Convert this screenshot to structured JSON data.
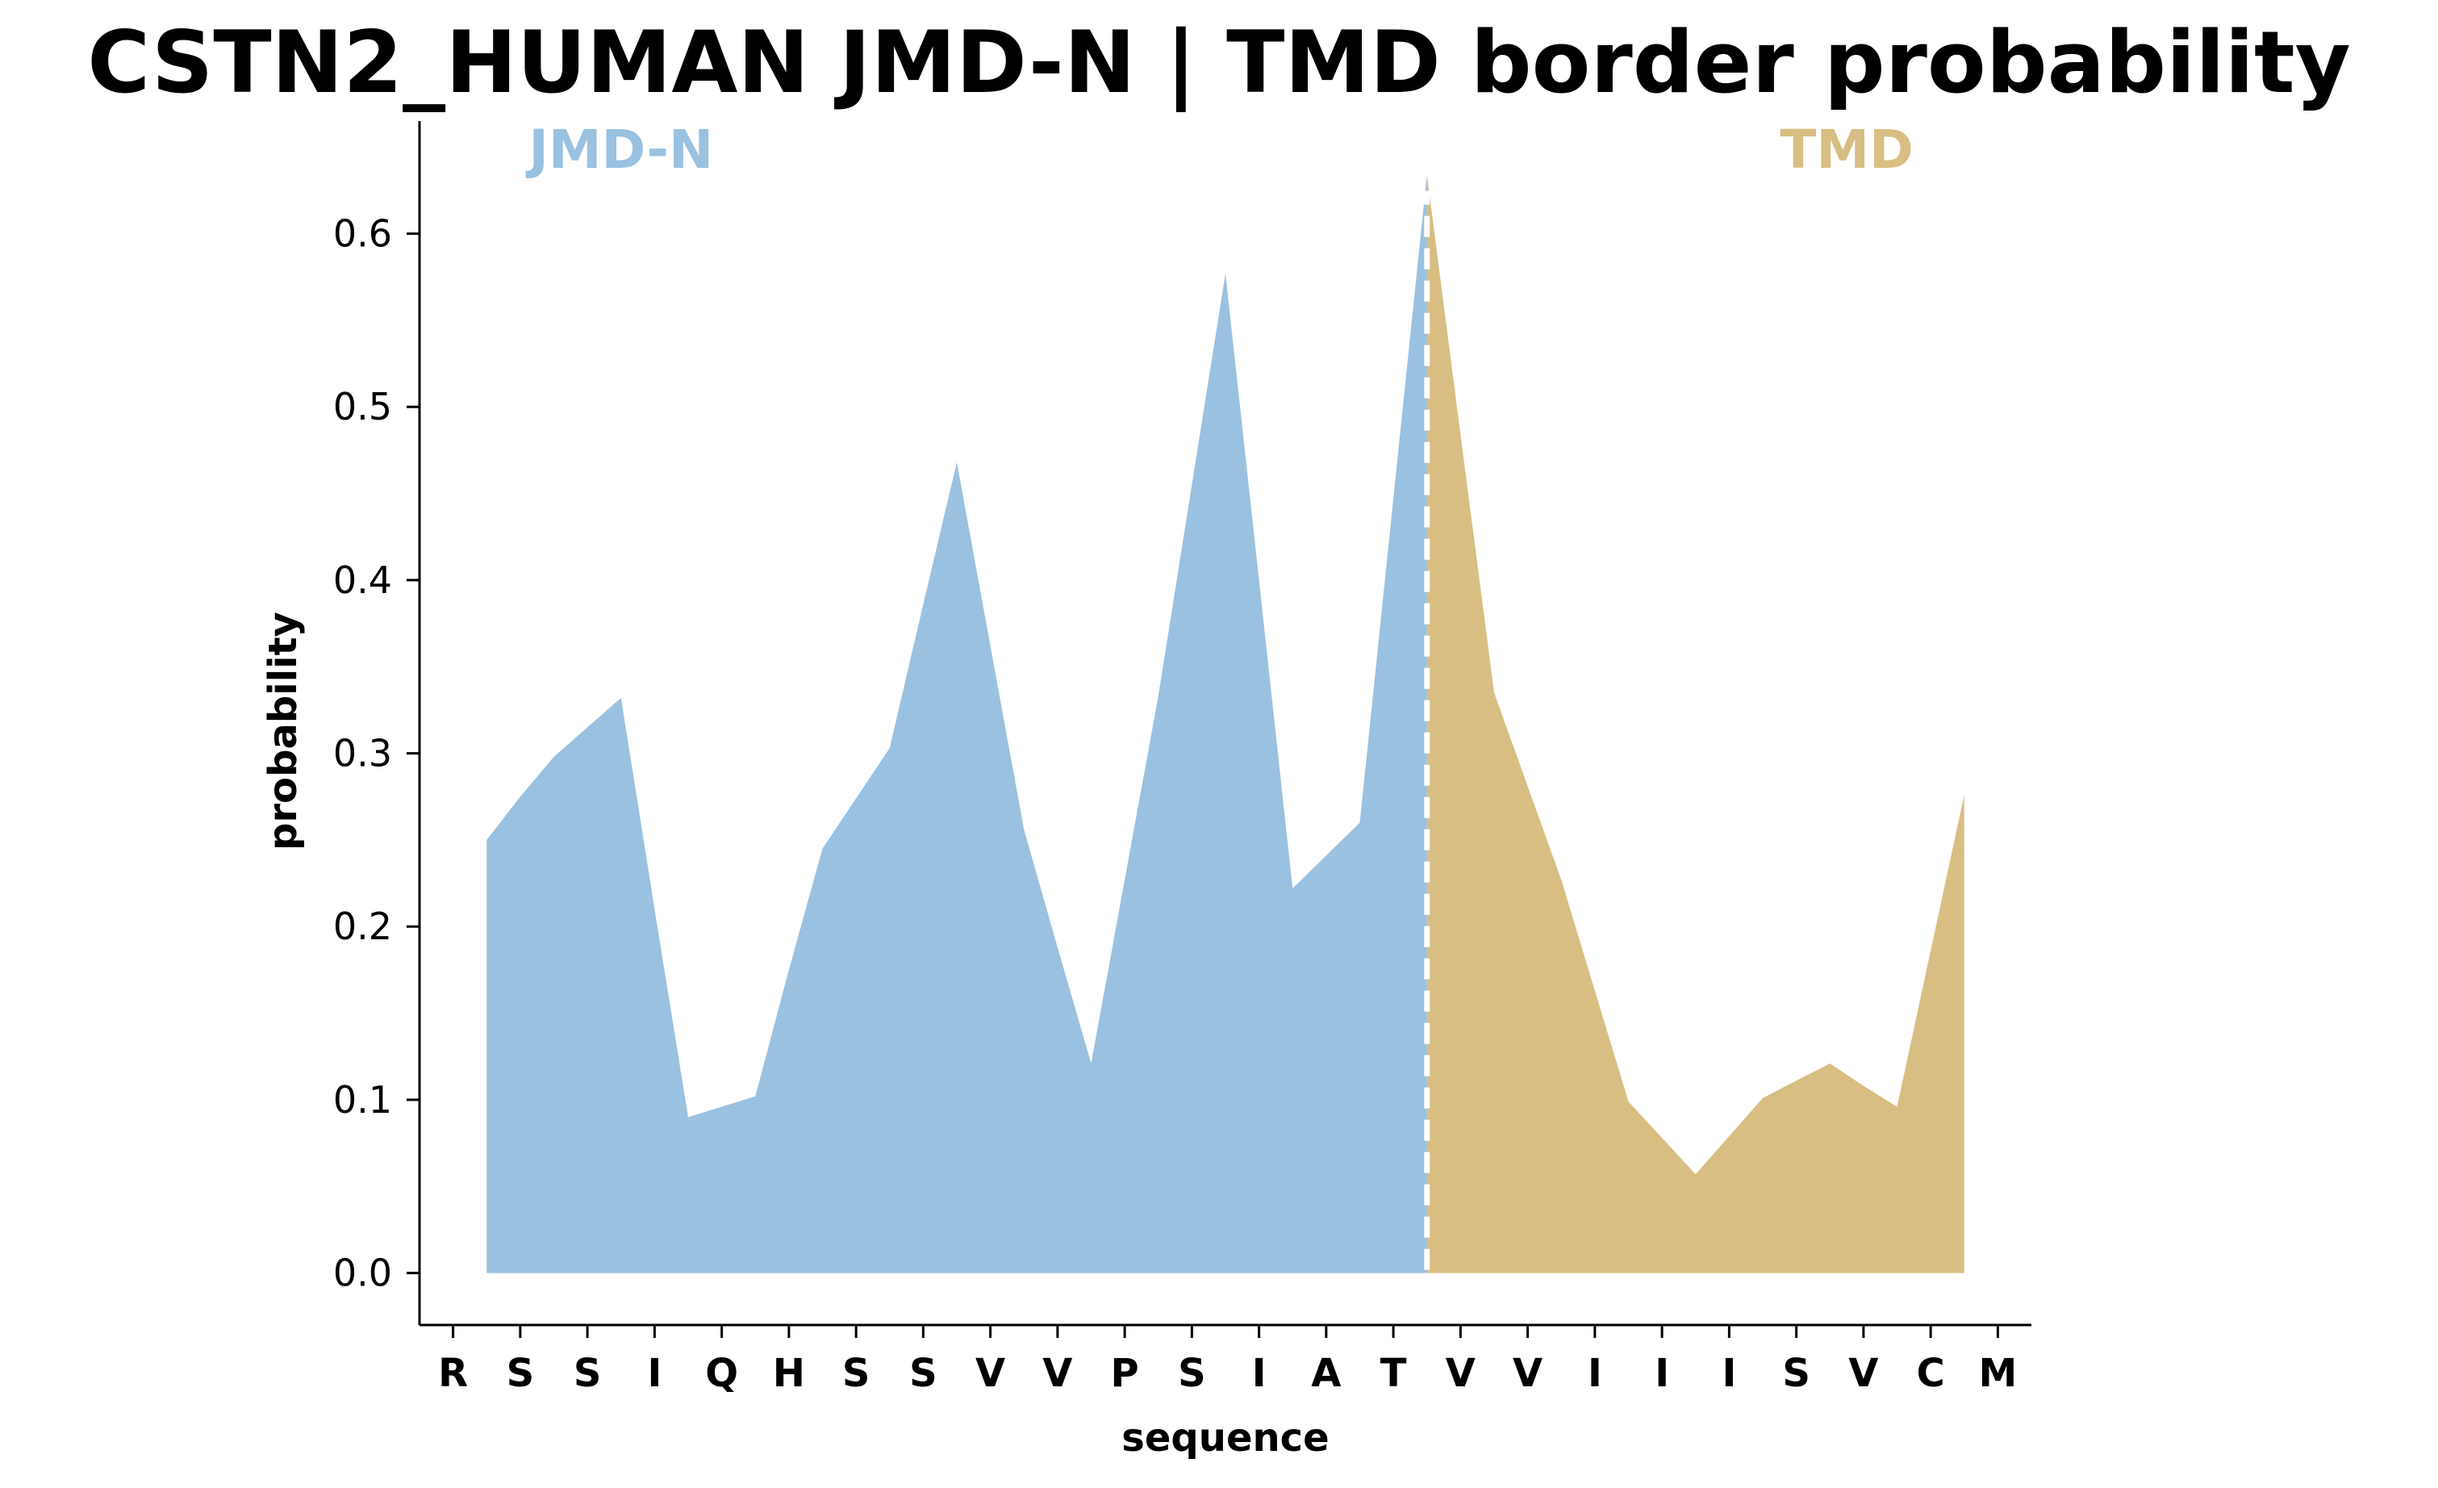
{
  "chart_data": {
    "type": "area",
    "title": "CSTN2_HUMAN JMD-N | TMD border probability",
    "xlabel": "sequence",
    "ylabel": "probability",
    "ylim": [
      -0.03,
      0.665
    ],
    "yticks": [
      "0.0",
      "0.1",
      "0.2",
      "0.3",
      "0.4",
      "0.5",
      "0.6"
    ],
    "sequence": [
      "R",
      "S",
      "S",
      "I",
      "Q",
      "H",
      "S",
      "S",
      "V",
      "V",
      "P",
      "S",
      "I",
      "A",
      "T",
      "V",
      "V",
      "I",
      "I",
      "I",
      "S",
      "V",
      "C",
      "M"
    ],
    "border_position": 14.5,
    "region_labels": [
      {
        "text": "JMD-N",
        "color": "#9ac1e0"
      },
      {
        "text": "TMD",
        "color": "#d8be82"
      }
    ],
    "series": [
      {
        "region": "JMD-N",
        "color": "#9ac1e0",
        "x": [
          0.5,
          1.0,
          1.5,
          2.0,
          2.5,
          3.0,
          3.5,
          4.0,
          4.5,
          5.0,
          5.5,
          6.0,
          6.5,
          7.0,
          7.5,
          8.0,
          8.5,
          9.0,
          9.5,
          10.0,
          10.5,
          11.0,
          11.5,
          12.0,
          12.5,
          13.0,
          13.5,
          14.0,
          14.5
        ],
        "values": [
          0.25,
          0.275,
          0.298,
          0.315,
          0.332,
          0.21,
          0.09,
          0.096,
          0.102,
          0.175,
          0.245,
          0.274,
          0.303,
          0.386,
          0.468,
          0.362,
          0.256,
          0.188,
          0.121,
          0.227,
          0.333,
          0.455,
          0.577,
          0.4,
          0.222,
          0.241,
          0.26,
          0.447,
          0.634
        ]
      },
      {
        "region": "TMD",
        "color": "#d8be82",
        "x": [
          14.5,
          15.0,
          15.5,
          16.0,
          16.5,
          17.0,
          17.5,
          18.0,
          18.5,
          19.0,
          19.5,
          20.0,
          20.5,
          21.0,
          21.5,
          22.0,
          22.5
        ],
        "values": [
          0.634,
          0.484,
          0.335,
          0.281,
          0.227,
          0.163,
          0.099,
          0.078,
          0.057,
          0.079,
          0.101,
          0.111,
          0.121,
          0.108,
          0.096,
          0.186,
          0.276
        ]
      }
    ],
    "grid": false,
    "legend": "none"
  }
}
